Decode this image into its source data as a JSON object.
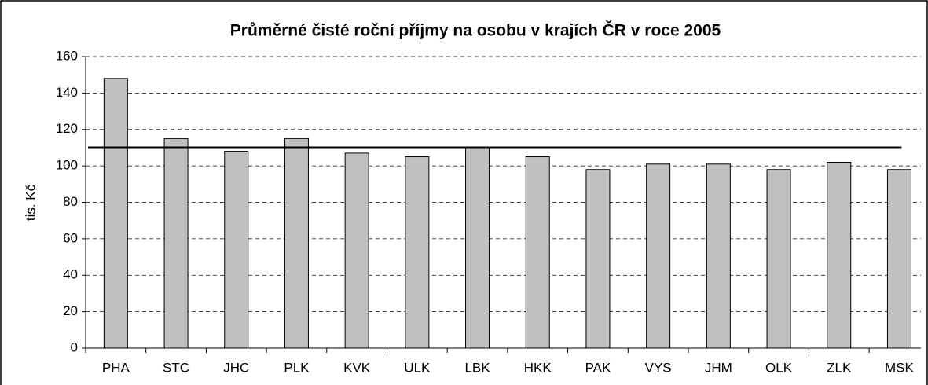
{
  "chart_data": {
    "type": "bar",
    "title": "Průměrné čisté roční příjmy na osobu v krajích ČR v roce 2005",
    "y_label": "tis. Kč",
    "categories": [
      "PHA",
      "STC",
      "JHC",
      "PLK",
      "KVK",
      "ULK",
      "LBK",
      "HKK",
      "PAK",
      "VYS",
      "JHM",
      "OLK",
      "ZLK",
      "MSK"
    ],
    "values": [
      148,
      115,
      108,
      115,
      107,
      105,
      110,
      105,
      98,
      101,
      101,
      98,
      102,
      98
    ],
    "color": "#c0c0c0",
    "average": 110,
    "average_color": "#000000",
    "ylim": [
      0,
      160
    ],
    "yticks": [
      0,
      20,
      40,
      60,
      80,
      100,
      120,
      140,
      160
    ],
    "grid": true
  }
}
